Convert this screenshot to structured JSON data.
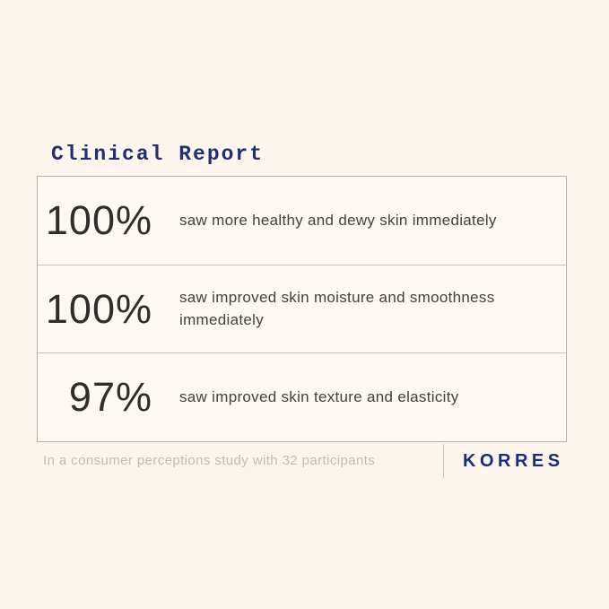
{
  "title": "Clinical Report",
  "report": {
    "rows": [
      {
        "percent": "100%",
        "description": "saw more healthy and dewy skin immediately"
      },
      {
        "percent": "100%",
        "description": "saw improved skin moisture and smoothness\nimmediately"
      },
      {
        "percent": "97%",
        "description": "saw improved skin texture and elasticity"
      }
    ]
  },
  "footer": {
    "note": "In a consumer perceptions study with 32 participants",
    "brand": "KORRES"
  },
  "colors": {
    "page_background": "#fcf5ed",
    "box_background": "#fdf8f1",
    "box_border": "#b3afa7",
    "title_navy": "#232e6e",
    "brand_navy": "#1b2e74",
    "stat_text": "#2f2e2c",
    "description_text": "#44423f",
    "footnote_gray": "#c2bdb4"
  }
}
